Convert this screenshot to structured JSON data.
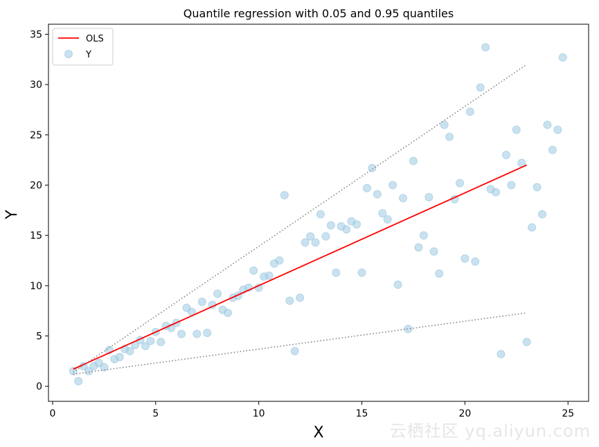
{
  "chart_data": {
    "type": "scatter",
    "title": "Quantile regression with 0.05 and 0.95 quantiles",
    "xlabel": "X",
    "ylabel": "Y",
    "xlim": [
      -0.2,
      26
    ],
    "ylim": [
      -1.5,
      36
    ],
    "x_ticks": [
      0,
      5,
      10,
      15,
      20,
      25
    ],
    "y_ticks": [
      0,
      5,
      10,
      15,
      20,
      25,
      30,
      35
    ],
    "grid": false,
    "legend_position": "top-left",
    "series": [
      {
        "name": "Y",
        "kind": "scatter",
        "color": "#9ecae1",
        "points": [
          [
            1.0,
            1.5
          ],
          [
            1.25,
            0.5
          ],
          [
            1.5,
            2.0
          ],
          [
            1.75,
            1.5
          ],
          [
            2.0,
            2.0
          ],
          [
            2.25,
            2.3
          ],
          [
            2.5,
            1.9
          ],
          [
            2.75,
            3.6
          ],
          [
            3.0,
            2.7
          ],
          [
            3.25,
            2.9
          ],
          [
            3.5,
            3.7
          ],
          [
            3.75,
            3.5
          ],
          [
            4.0,
            4.1
          ],
          [
            4.25,
            4.6
          ],
          [
            4.5,
            4.0
          ],
          [
            4.75,
            4.5
          ],
          [
            5.0,
            5.4
          ],
          [
            5.25,
            4.4
          ],
          [
            5.5,
            6.0
          ],
          [
            5.75,
            5.8
          ],
          [
            6.0,
            6.3
          ],
          [
            6.25,
            5.2
          ],
          [
            6.5,
            7.8
          ],
          [
            6.75,
            7.4
          ],
          [
            7.0,
            5.2
          ],
          [
            7.25,
            8.4
          ],
          [
            7.5,
            5.3
          ],
          [
            7.75,
            8.1
          ],
          [
            8.0,
            9.2
          ],
          [
            8.25,
            7.6
          ],
          [
            8.5,
            7.3
          ],
          [
            8.75,
            8.8
          ],
          [
            9.0,
            9.0
          ],
          [
            9.25,
            9.6
          ],
          [
            9.5,
            9.8
          ],
          [
            9.75,
            11.5
          ],
          [
            10.0,
            9.8
          ],
          [
            10.25,
            10.9
          ],
          [
            10.5,
            11.0
          ],
          [
            10.75,
            12.2
          ],
          [
            11.0,
            12.5
          ],
          [
            11.25,
            19.0
          ],
          [
            11.5,
            8.5
          ],
          [
            11.75,
            3.5
          ],
          [
            12.0,
            8.8
          ],
          [
            12.25,
            14.3
          ],
          [
            12.5,
            14.9
          ],
          [
            12.75,
            14.3
          ],
          [
            13.0,
            17.1
          ],
          [
            13.25,
            14.9
          ],
          [
            13.5,
            16.0
          ],
          [
            13.75,
            11.3
          ],
          [
            14.0,
            15.9
          ],
          [
            14.25,
            15.6
          ],
          [
            14.5,
            16.4
          ],
          [
            14.75,
            16.1
          ],
          [
            15.0,
            11.3
          ],
          [
            15.25,
            19.7
          ],
          [
            15.5,
            21.7
          ],
          [
            15.75,
            19.1
          ],
          [
            16.0,
            17.2
          ],
          [
            16.25,
            16.6
          ],
          [
            16.5,
            20.0
          ],
          [
            16.75,
            10.1
          ],
          [
            17.0,
            18.7
          ],
          [
            17.25,
            5.7
          ],
          [
            17.5,
            22.4
          ],
          [
            17.75,
            13.8
          ],
          [
            18.0,
            15.0
          ],
          [
            18.25,
            18.8
          ],
          [
            18.5,
            13.4
          ],
          [
            18.75,
            11.2
          ],
          [
            19.0,
            26.0
          ],
          [
            19.25,
            24.8
          ],
          [
            19.5,
            18.6
          ],
          [
            19.75,
            20.2
          ],
          [
            20.0,
            12.7
          ],
          [
            20.25,
            27.3
          ],
          [
            20.5,
            12.4
          ],
          [
            20.75,
            29.7
          ],
          [
            21.0,
            33.7
          ],
          [
            21.25,
            19.6
          ],
          [
            21.5,
            19.3
          ],
          [
            21.75,
            3.2
          ],
          [
            22.0,
            23.0
          ],
          [
            22.25,
            20.0
          ],
          [
            22.5,
            25.5
          ],
          [
            22.75,
            22.2
          ],
          [
            23.0,
            4.4
          ],
          [
            23.25,
            15.8
          ],
          [
            23.5,
            19.8
          ],
          [
            23.75,
            17.1
          ],
          [
            24.0,
            26.0
          ],
          [
            24.25,
            23.5
          ],
          [
            24.5,
            25.5
          ],
          [
            24.75,
            32.7
          ]
        ]
      },
      {
        "name": "OLS",
        "kind": "line",
        "color": "#ff0000",
        "points": [
          [
            1.0,
            1.7
          ],
          [
            23.0,
            22.0
          ]
        ]
      },
      {
        "name": "",
        "kind": "dotted-line",
        "color": "#808080",
        "points": [
          [
            1.0,
            1.4
          ],
          [
            23.0,
            32.0
          ]
        ]
      },
      {
        "name": "",
        "kind": "dotted-line",
        "color": "#808080",
        "points": [
          [
            1.0,
            1.2
          ],
          [
            23.0,
            7.3
          ]
        ]
      }
    ]
  },
  "watermark": "云栖社区 yq.aliyun.com"
}
